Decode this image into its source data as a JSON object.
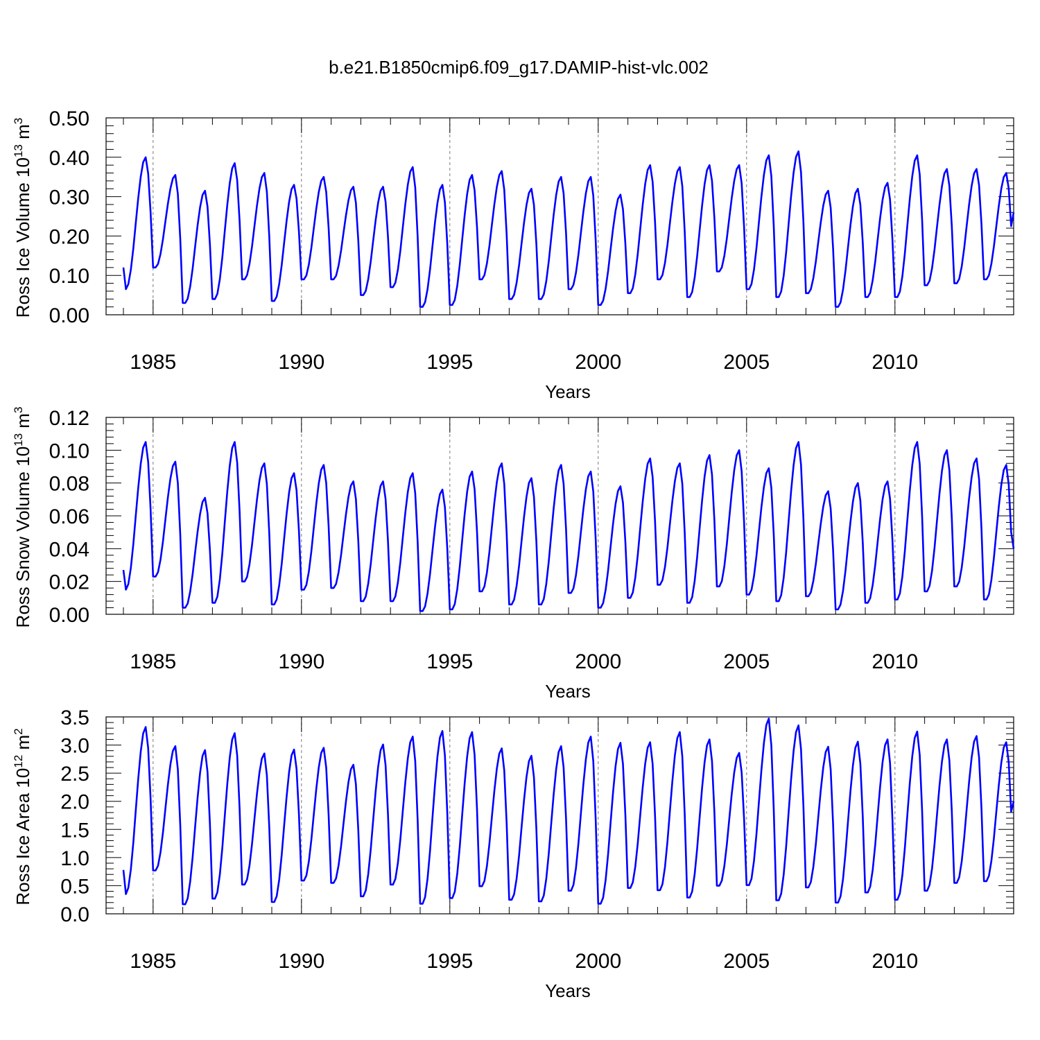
{
  "figure_title": "b.e21.B1850cmip6.f09_g17.DAMIP-hist-vlc.002",
  "colors": {
    "series": "#0000ff",
    "axis": "#000000",
    "grid": "#777777"
  },
  "chart_data": [
    {
      "type": "line",
      "title": "b.e21.B1850cmip6.f09_g17.DAMIP-hist-vlc.002",
      "xlabel": "Years",
      "ylabel_prefix": "Ross Ice Volume 10",
      "ylabel_exp": "13",
      "ylabel_unit": " m",
      "ylabel_unit_exp": "3",
      "xlim": [
        1984.0,
        2014.0
      ],
      "ylim": [
        0.0,
        0.5
      ],
      "x_ticks": [
        1985,
        1990,
        1995,
        2000,
        2005,
        2010
      ],
      "x_tick_labels": [
        "1985",
        "1990",
        "1995",
        "2000",
        "2005",
        "2010"
      ],
      "y_ticks": [
        0.0,
        0.1,
        0.2,
        0.3,
        0.4,
        0.5
      ],
      "y_tick_labels": [
        "0.00",
        "0.10",
        "0.20",
        "0.30",
        "0.40",
        "0.50"
      ],
      "grid": "vertical dashed at major x ticks",
      "series": [
        {
          "x_start": 1984.0,
          "x_step": 0.0833333,
          "maxima": [
            0.4,
            0.355,
            0.315,
            0.385,
            0.36,
            0.33,
            0.35,
            0.325,
            0.325,
            0.375,
            0.33,
            0.355,
            0.365,
            0.32,
            0.35,
            0.35,
            0.305,
            0.38,
            0.375,
            0.38,
            0.38,
            0.405,
            0.415,
            0.315,
            0.32,
            0.335,
            0.405,
            0.37,
            0.37,
            0.36
          ],
          "minima": [
            0.065,
            0.12,
            0.03,
            0.04,
            0.09,
            0.035,
            0.09,
            0.09,
            0.05,
            0.07,
            0.02,
            0.025,
            0.09,
            0.04,
            0.04,
            0.065,
            0.025,
            0.055,
            0.09,
            0.045,
            0.11,
            0.065,
            0.045,
            0.055,
            0.02,
            0.045,
            0.045,
            0.075,
            0.08,
            0.09
          ],
          "start_value": 0.12,
          "end_value": 0.26
        }
      ]
    },
    {
      "type": "line",
      "xlabel": "Years",
      "ylabel_prefix": "Ross Snow Volume 10",
      "ylabel_exp": "13",
      "ylabel_unit": " m",
      "ylabel_unit_exp": "3",
      "xlim": [
        1984.0,
        2014.0
      ],
      "ylim": [
        0.0,
        0.12
      ],
      "x_ticks": [
        1985,
        1990,
        1995,
        2000,
        2005,
        2010
      ],
      "x_tick_labels": [
        "1985",
        "1990",
        "1995",
        "2000",
        "2005",
        "2010"
      ],
      "y_ticks": [
        0.0,
        0.02,
        0.04,
        0.06,
        0.08,
        0.1,
        0.12
      ],
      "y_tick_labels": [
        "0.00",
        "0.02",
        "0.04",
        "0.06",
        "0.08",
        "0.10",
        "0.12"
      ],
      "grid": "vertical dashed at major x ticks",
      "series": [
        {
          "x_start": 1984.0,
          "x_step": 0.0833333,
          "maxima": [
            0.105,
            0.093,
            0.071,
            0.105,
            0.092,
            0.086,
            0.091,
            0.081,
            0.081,
            0.086,
            0.076,
            0.087,
            0.092,
            0.083,
            0.091,
            0.087,
            0.078,
            0.095,
            0.092,
            0.097,
            0.1,
            0.089,
            0.105,
            0.075,
            0.08,
            0.081,
            0.105,
            0.1,
            0.095,
            0.091
          ],
          "minima": [
            0.015,
            0.023,
            0.004,
            0.007,
            0.02,
            0.006,
            0.015,
            0.016,
            0.008,
            0.008,
            0.002,
            0.003,
            0.014,
            0.006,
            0.006,
            0.013,
            0.004,
            0.01,
            0.018,
            0.007,
            0.017,
            0.012,
            0.008,
            0.011,
            0.003,
            0.007,
            0.009,
            0.014,
            0.017,
            0.009
          ],
          "start_value": 0.027,
          "end_value": 0.04
        }
      ]
    },
    {
      "type": "line",
      "xlabel": "Years",
      "ylabel_prefix": "Ross Ice Area 10",
      "ylabel_exp": "12",
      "ylabel_unit": " m",
      "ylabel_unit_exp": "2",
      "xlim": [
        1984.0,
        2014.0
      ],
      "ylim": [
        0.0,
        3.5
      ],
      "x_ticks": [
        1985,
        1990,
        1995,
        2000,
        2005,
        2010
      ],
      "x_tick_labels": [
        "1985",
        "1990",
        "1995",
        "2000",
        "2005",
        "2010"
      ],
      "y_ticks": [
        0.0,
        0.5,
        1.0,
        1.5,
        2.0,
        2.5,
        3.0,
        3.5
      ],
      "y_tick_labels": [
        "0.0",
        "0.5",
        "1.0",
        "1.5",
        "2.0",
        "2.5",
        "3.0",
        "3.5"
      ],
      "grid": "vertical dashed at major x ticks",
      "series": [
        {
          "x_start": 1984.0,
          "x_step": 0.0833333,
          "maxima": [
            3.32,
            2.98,
            2.91,
            3.21,
            2.85,
            2.92,
            2.95,
            2.65,
            3.01,
            3.15,
            3.25,
            3.23,
            2.94,
            2.81,
            2.98,
            3.15,
            3.04,
            3.05,
            3.23,
            3.1,
            2.86,
            3.47,
            3.35,
            2.97,
            3.06,
            3.1,
            3.24,
            3.1,
            3.16,
            3.05
          ],
          "minima": [
            0.35,
            0.77,
            0.17,
            0.27,
            0.52,
            0.21,
            0.59,
            0.55,
            0.31,
            0.52,
            0.18,
            0.28,
            0.49,
            0.25,
            0.22,
            0.41,
            0.18,
            0.46,
            0.42,
            0.29,
            0.5,
            0.51,
            0.24,
            0.47,
            0.2,
            0.38,
            0.25,
            0.41,
            0.55,
            0.58
          ],
          "start_value": 0.78,
          "end_value": 2.0
        }
      ]
    }
  ]
}
